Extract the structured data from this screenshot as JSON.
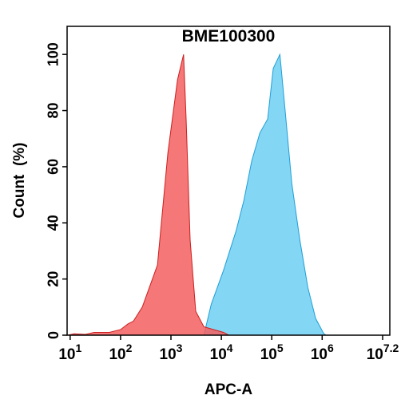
{
  "chart_data": {
    "type": "area",
    "title": "BME100300",
    "xlabel": "APC-A",
    "ylabel": "Count  (%)",
    "xscale": "log",
    "xlim": [
      8.7,
      22000000
    ],
    "ylim": [
      0,
      110
    ],
    "xticks": [
      {
        "value": 10,
        "label": "10",
        "sup": "1"
      },
      {
        "value": 100,
        "label": "10",
        "sup": "2"
      },
      {
        "value": 1000,
        "label": "10",
        "sup": "3"
      },
      {
        "value": 10000,
        "label": "10",
        "sup": "4"
      },
      {
        "value": 100000,
        "label": "10",
        "sup": "5"
      },
      {
        "value": 1000000,
        "label": "10",
        "sup": "6"
      },
      {
        "value": 15848932,
        "label": "10",
        "sup": "7.2"
      }
    ],
    "yticks": [
      0,
      20,
      40,
      60,
      80,
      100
    ],
    "series": [
      {
        "color": "#6fcff3",
        "stroke": "#1e9fd6",
        "x": [
          4500,
          6300,
          11000,
          19500,
          28000,
          40000,
          58000,
          83000,
          107000,
          145000,
          180000,
          250000,
          360000,
          520000,
          740000,
          1070000,
          1200000
        ],
        "values": [
          0,
          11,
          23,
          37,
          48,
          62,
          72,
          77,
          95,
          100,
          82,
          54,
          34,
          17,
          6,
          0.6,
          0
        ]
      },
      {
        "color": "#f35f5f",
        "stroke": "#cc1f1f",
        "x": [
          9,
          12,
          20,
          30,
          60,
          100,
          140,
          180,
          270,
          540,
          870,
          1350,
          1780,
          2000,
          2400,
          3100,
          4500,
          11000,
          14000
        ],
        "values": [
          0,
          0.5,
          0.3,
          1,
          1,
          2,
          4,
          5,
          10,
          25,
          65,
          91,
          100,
          77,
          34,
          8.5,
          3,
          1,
          0
        ]
      }
    ]
  }
}
